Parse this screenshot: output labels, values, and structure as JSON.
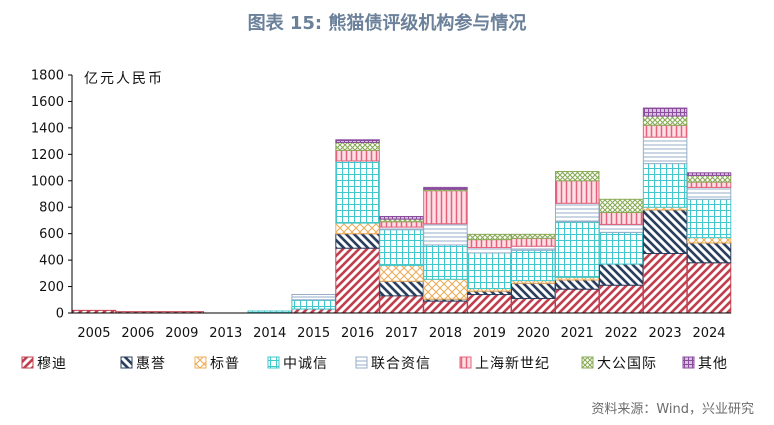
{
  "title": "图表 15: 熊猫债评级机构参与情况",
  "unit_label": "亿元人民币",
  "source": "资料来源：Wind，兴业研究",
  "chart_data": {
    "type": "bar",
    "stacked": true,
    "categories": [
      "2005",
      "2006",
      "2009",
      "2013",
      "2014",
      "2015",
      "2016",
      "2017",
      "2018",
      "2019",
      "2020",
      "2021",
      "2022",
      "2023",
      "2024"
    ],
    "ylim": [
      0,
      1800
    ],
    "yticks": [
      0,
      200,
      400,
      600,
      800,
      1000,
      1200,
      1400,
      1600,
      1800
    ],
    "series": [
      {
        "name": "穆迪",
        "color": "#c0404f",
        "pattern": "diag-right",
        "values": [
          20,
          10,
          10,
          0,
          0,
          30,
          490,
          130,
          90,
          140,
          110,
          180,
          210,
          450,
          380
        ]
      },
      {
        "name": "惠誉",
        "color": "#2a3f5f",
        "pattern": "diag-left",
        "values": [
          0,
          0,
          0,
          0,
          0,
          0,
          110,
          110,
          15,
          25,
          115,
          70,
          160,
          330,
          150
        ]
      },
      {
        "name": "标普",
        "color": "#f0ac58",
        "pattern": "cross",
        "values": [
          0,
          0,
          0,
          0,
          0,
          0,
          80,
          120,
          150,
          20,
          20,
          20,
          0,
          20,
          40
        ]
      },
      {
        "name": "中诚信",
        "color": "#40c8cc",
        "pattern": "grid",
        "values": [
          0,
          0,
          0,
          0,
          15,
          70,
          470,
          270,
          260,
          270,
          230,
          420,
          240,
          330,
          290
        ]
      },
      {
        "name": "联合资信",
        "color": "#97aec8",
        "pattern": "hlines",
        "values": [
          0,
          0,
          0,
          0,
          0,
          40,
          0,
          20,
          160,
          40,
          30,
          140,
          60,
          200,
          90
        ]
      },
      {
        "name": "上海新世纪",
        "color": "#e8607a",
        "pattern": "vlines",
        "values": [
          0,
          0,
          0,
          0,
          0,
          0,
          80,
          40,
          250,
          60,
          60,
          170,
          90,
          90,
          40
        ]
      },
      {
        "name": "大公国际",
        "color": "#88aa55",
        "pattern": "crosshatch",
        "values": [
          0,
          0,
          0,
          0,
          0,
          0,
          60,
          20,
          10,
          40,
          30,
          70,
          100,
          70,
          50
        ]
      },
      {
        "name": "其他",
        "color": "#8a4c9c",
        "pattern": "dots",
        "values": [
          0,
          0,
          0,
          0,
          0,
          0,
          20,
          20,
          15,
          0,
          0,
          0,
          0,
          60,
          20
        ]
      }
    ],
    "legend_position": "bottom",
    "grid": false
  }
}
